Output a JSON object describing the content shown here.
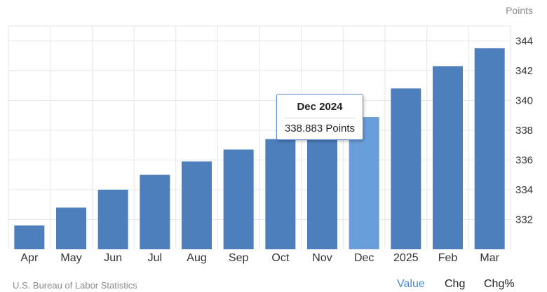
{
  "unit_label": "Points",
  "source": "U.S. Bureau of Labor Statistics",
  "tabs": [
    {
      "label": "Value",
      "active": true
    },
    {
      "label": "Chg",
      "active": false
    },
    {
      "label": "Chg%",
      "active": false
    }
  ],
  "tooltip": {
    "title": "Dec 2024",
    "value": "338.883 Points"
  },
  "colors": {
    "bar": "#4d7fbd",
    "bar_highlight": "#6a9edb",
    "grid": "#e6e6e6",
    "axis_text": "#333333",
    "tab_active": "#4a8ad4"
  },
  "chart_data": {
    "type": "bar",
    "title": "",
    "xlabel": "",
    "ylabel": "Points",
    "categories": [
      "Apr",
      "May",
      "Jun",
      "Jul",
      "Aug",
      "Sep",
      "Oct",
      "Nov",
      "Dec",
      "2025",
      "Feb",
      "Mar"
    ],
    "values": [
      331.6,
      332.8,
      334.0,
      335.0,
      335.9,
      336.7,
      337.4,
      338.2,
      338.883,
      340.8,
      342.3,
      343.5
    ],
    "highlight_index": 8,
    "ylim": [
      330,
      345
    ],
    "yticks": [
      332,
      334,
      336,
      338,
      340,
      342,
      344
    ],
    "grid": true,
    "y_axis_position": "right"
  }
}
